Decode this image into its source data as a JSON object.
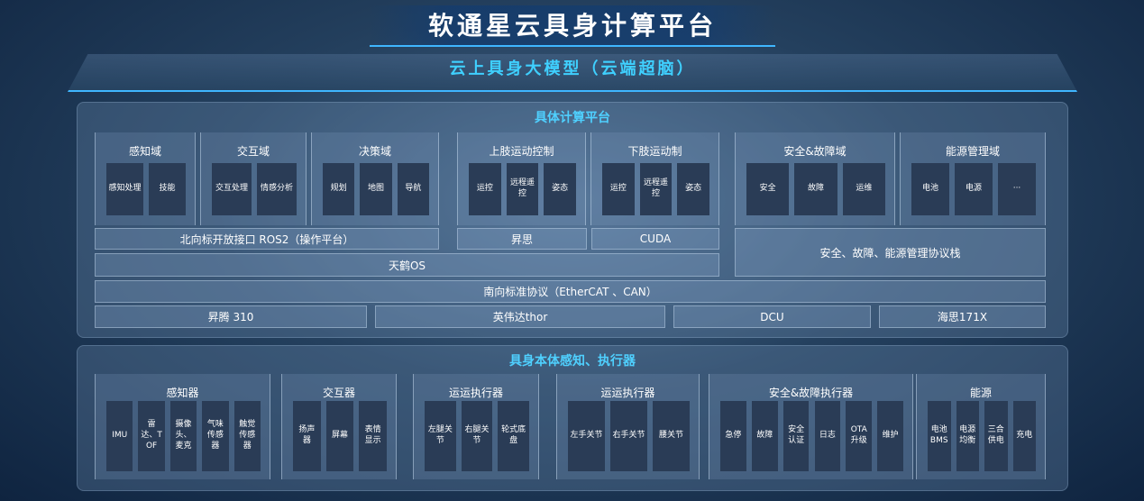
{
  "title": "软通星云具身计算平台",
  "cloud": "云上具身大模型（云端超脑）",
  "upper": {
    "title": "具体计算平台",
    "groups": [
      {
        "title": "感知域",
        "items": [
          "感知处理",
          "技能"
        ]
      },
      {
        "title": "交互域",
        "items": [
          "交互处理",
          "情感分析"
        ]
      },
      {
        "title": "决策域",
        "items": [
          "规划",
          "地图",
          "导航"
        ]
      },
      {
        "title": "上肢运动控制",
        "items": [
          "运控",
          "远程遥控",
          "姿态"
        ]
      },
      {
        "title": "下肢运动制",
        "items": [
          "运控",
          "远程遥控",
          "姿态"
        ]
      },
      {
        "title": "安全&故障域",
        "items": [
          "安全",
          "故障",
          "运维"
        ]
      },
      {
        "title": "能源管理域",
        "items": [
          "电池",
          "电源",
          "···"
        ]
      }
    ],
    "bars": {
      "north": "北向标开放接口  ROS2（操作平台）",
      "mindspore": "昇思",
      "cuda": "CUDA",
      "safety_stack": "安全、故障、能源管理协议栈",
      "os": "天鹤OS",
      "south": "南向标准协议（EtherCAT 、CAN）",
      "chips": [
        "昇腾 310",
        "英伟达thor",
        "DCU",
        "海思171X"
      ]
    }
  },
  "lower": {
    "title": "具身本体感知、执行器",
    "groups": [
      {
        "title": "感知器",
        "items": [
          "IMU",
          "雷达、TOF",
          "摄像头、麦克",
          "气味传感器",
          "触觉传感器"
        ]
      },
      {
        "title": "交互器",
        "items": [
          "扬声器",
          "屏幕",
          "表情显示"
        ]
      },
      {
        "title": "运运执行器",
        "items": [
          "左腿关节",
          "右腿关节",
          "轮式底盘"
        ]
      },
      {
        "title": "运运执行器",
        "items": [
          "左手关节",
          "右手关节",
          "腰关节"
        ]
      },
      {
        "title": "安全&故障执行器",
        "items": [
          "急停",
          "故障",
          "安全认证",
          "日志",
          "OTA升级",
          "维护"
        ]
      },
      {
        "title": "能源",
        "items": [
          "电池BMS",
          "电源均衡",
          "三合供电",
          "充电"
        ]
      }
    ]
  }
}
